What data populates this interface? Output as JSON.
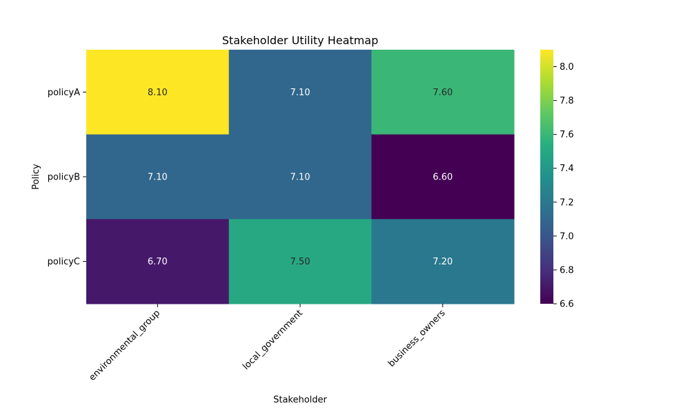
{
  "chart_data": {
    "type": "heatmap",
    "title": "Stakeholder Utility Heatmap",
    "xlabel": "Stakeholder",
    "ylabel": "Policy",
    "x_categories": [
      "environmental_group",
      "local_government",
      "business_owners"
    ],
    "y_categories": [
      "policyA",
      "policyB",
      "policyC"
    ],
    "values": [
      [
        8.1,
        7.1,
        7.6
      ],
      [
        7.1,
        7.1,
        6.6
      ],
      [
        6.7,
        7.5,
        7.2
      ]
    ],
    "annotations": [
      [
        "8.10",
        "7.10",
        "7.60"
      ],
      [
        "7.10",
        "7.10",
        "6.60"
      ],
      [
        "6.70",
        "7.50",
        "7.20"
      ]
    ],
    "colormap": "viridis",
    "vmin": 6.6,
    "vmax": 8.1,
    "colorbar_ticks": [
      "6.6",
      "6.8",
      "7.0",
      "7.2",
      "7.4",
      "7.6",
      "7.8",
      "8.0"
    ],
    "colorbar_tick_values": [
      6.6,
      6.8,
      7.0,
      7.2,
      7.4,
      7.6,
      7.8,
      8.0
    ],
    "x_tick_rotation_deg": 45
  }
}
